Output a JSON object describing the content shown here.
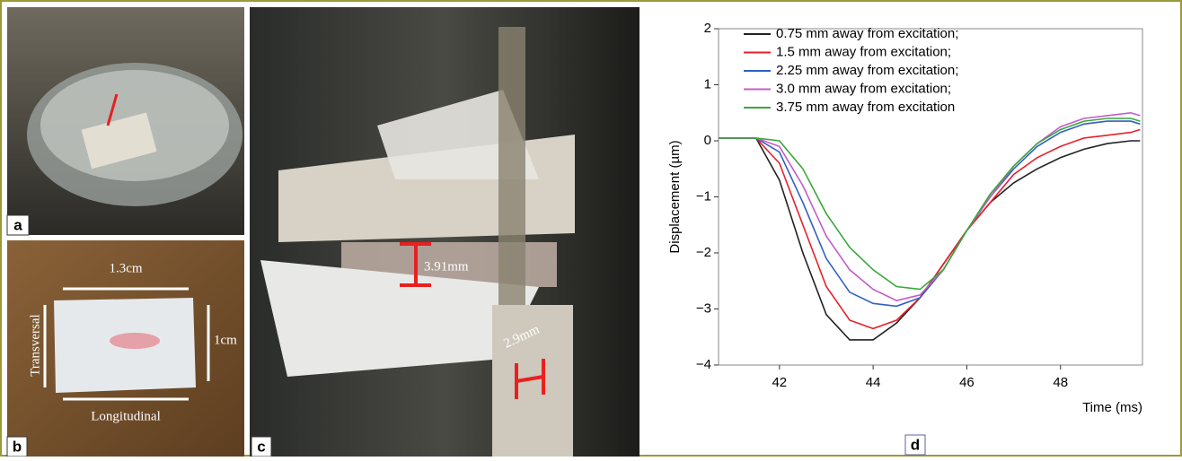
{
  "photos": [
    {
      "label": "a"
    },
    {
      "label": "b",
      "annotations": [
        "1.3cm",
        "1cm",
        "Transversal",
        "Longitudinal"
      ]
    },
    {
      "label": "c",
      "annotations": [
        "3.91mm",
        "2.9mm"
      ]
    }
  ],
  "chart_data": {
    "type": "line",
    "panel_label": "d",
    "x_label": "Time (ms)",
    "y_label": "Displacement (µm)",
    "x": [
      40.7,
      41,
      41.5,
      42,
      42.5,
      43,
      43.5,
      44,
      44.5,
      45,
      45.5,
      46,
      46.5,
      47,
      47.5,
      48,
      48.5,
      49,
      49.5,
      49.7
    ],
    "series": [
      {
        "name": "0.75 mm away from excitation;",
        "color": "#222222",
        "values": [
          0.05,
          0.05,
          0.05,
          -0.7,
          -2.0,
          -3.1,
          -3.55,
          -3.55,
          -3.25,
          -2.8,
          -2.2,
          -1.6,
          -1.1,
          -0.75,
          -0.5,
          -0.3,
          -0.15,
          -0.05,
          0,
          0
        ]
      },
      {
        "name": "1.5 mm away from excitation;",
        "color": "#e8202a",
        "values": [
          0.05,
          0.05,
          0.05,
          -0.4,
          -1.5,
          -2.6,
          -3.2,
          -3.35,
          -3.2,
          -2.8,
          -2.2,
          -1.6,
          -1.1,
          -0.6,
          -0.3,
          -0.1,
          0.05,
          0.1,
          0.15,
          0.2
        ]
      },
      {
        "name": "2.25 mm away from excitation;",
        "color": "#2f5fc4",
        "values": [
          0.05,
          0.05,
          0.05,
          -0.2,
          -1.1,
          -2.1,
          -2.7,
          -2.9,
          -2.95,
          -2.8,
          -2.3,
          -1.6,
          -1.0,
          -0.5,
          -0.1,
          0.15,
          0.3,
          0.35,
          0.35,
          0.3
        ]
      },
      {
        "name": "3.0 mm away from excitation;",
        "color": "#c45cc8",
        "values": [
          0.05,
          0.05,
          0.05,
          -0.1,
          -0.8,
          -1.7,
          -2.3,
          -2.65,
          -2.85,
          -2.75,
          -2.3,
          -1.6,
          -1.0,
          -0.45,
          -0.05,
          0.25,
          0.4,
          0.45,
          0.5,
          0.45
        ]
      },
      {
        "name": "3.75 mm away from excitation",
        "color": "#3aa83a",
        "values": [
          0.05,
          0.05,
          0.05,
          0,
          -0.5,
          -1.3,
          -1.9,
          -2.3,
          -2.6,
          -2.65,
          -2.3,
          -1.6,
          -0.95,
          -0.45,
          -0.05,
          0.2,
          0.35,
          0.4,
          0.4,
          0.35
        ]
      }
    ],
    "xlim": [
      40.7,
      49.75
    ],
    "xticks": [
      42,
      44,
      46,
      48
    ],
    "ylim": [
      -4,
      2
    ],
    "yticks": [
      {
        "value": -4,
        "label": "−4"
      },
      {
        "value": -3,
        "label": "−3"
      },
      {
        "value": -2,
        "label": "−2"
      },
      {
        "value": -1,
        "label": "−1"
      },
      0,
      1,
      2
    ],
    "legend": "upper left"
  }
}
